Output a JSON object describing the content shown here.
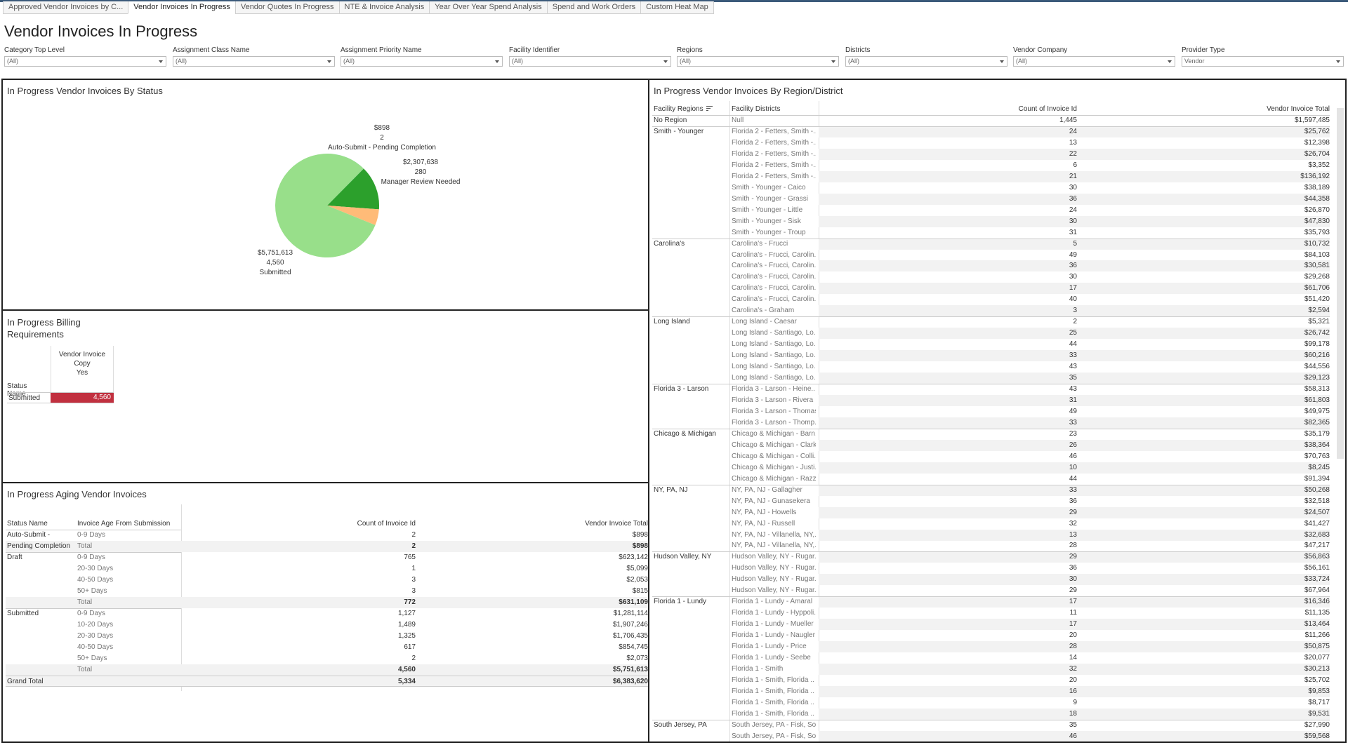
{
  "tabs": [
    {
      "label": "Approved Vendor Invoices by C...",
      "active": false
    },
    {
      "label": "Vendor Invoices In Progress",
      "active": true
    },
    {
      "label": "Vendor Quotes In Progress",
      "active": false
    },
    {
      "label": "NTE & Invoice Analysis",
      "active": false
    },
    {
      "label": "Year Over Year Spend Analysis",
      "active": false
    },
    {
      "label": "Spend and Work Orders",
      "active": false
    },
    {
      "label": "Custom Heat Map",
      "active": false
    }
  ],
  "page_title": "Vendor Invoices In Progress",
  "filters": [
    {
      "label": "Category Top Level",
      "value": "(All)"
    },
    {
      "label": "Assignment Class Name",
      "value": "(All)"
    },
    {
      "label": "Assignment Priority Name",
      "value": "(All)"
    },
    {
      "label": "Facility Identifier",
      "value": "(All)"
    },
    {
      "label": "Regions",
      "value": "(All)"
    },
    {
      "label": "Districts",
      "value": "(All)"
    },
    {
      "label": "Vendor Company",
      "value": "(All)"
    },
    {
      "label": "Provider Type",
      "value": "Vendor"
    }
  ],
  "status_panel": {
    "title": "In Progress Vendor Invoices By Status",
    "colors": {
      "Submitted": "#98df8a",
      "Manager Review Needed": "#ffbb78",
      "Draft": "#2ca02c",
      "Auto-Submit - Pending Completion": "#9edae5"
    }
  },
  "chart_data": {
    "type": "pie",
    "slices": [
      {
        "name": "Submitted",
        "amount": "$5,751,613",
        "count": 4560,
        "count_label": "4,560",
        "value": 4560,
        "color": "#98df8a"
      },
      {
        "name": "Manager Review Needed",
        "amount": "$2,307,638",
        "count": 280,
        "count_label": "280",
        "value": 280,
        "color": "#ffbb78"
      },
      {
        "name": "",
        "amount": "",
        "count": 772,
        "count_label": "",
        "value": 772,
        "color": "#2ca02c"
      },
      {
        "name": "Auto-Submit - Pending Completion",
        "amount": "$898",
        "count": 2,
        "count_label": "2",
        "value": 2,
        "color": "#9edae5"
      }
    ]
  },
  "billing_panel": {
    "title_line1": "In Progress Billing",
    "title_line2": "Requirements",
    "col_header_line1": "Vendor Invoice",
    "col_header_line2": "Copy",
    "col_header_line3": "Yes",
    "row_header": "Status Name",
    "row_label": "Submitted",
    "row_value": "4,560",
    "highlight_color": "#c1303f"
  },
  "aging_panel": {
    "title": "In Progress Aging Vendor Invoices",
    "headers": {
      "status": "Status Name",
      "age": "Invoice Age From Submission",
      "count": "Count of Invoice Id",
      "total": "Vendor Invoice Total"
    },
    "rows": [
      {
        "status": "Auto-Submit -",
        "age": "0-9 Days",
        "count": "2",
        "total": "$898",
        "kind": "data"
      },
      {
        "status": "Pending Completion",
        "age": "Total",
        "count": "2",
        "total": "$898",
        "kind": "total"
      },
      {
        "status": "Draft",
        "age": "0-9 Days",
        "count": "765",
        "total": "$623,142",
        "kind": "data"
      },
      {
        "status": "",
        "age": "20-30 Days",
        "count": "1",
        "total": "$5,099",
        "kind": "data"
      },
      {
        "status": "",
        "age": "40-50 Days",
        "count": "3",
        "total": "$2,053",
        "kind": "data"
      },
      {
        "status": "",
        "age": "50+ Days",
        "count": "3",
        "total": "$815",
        "kind": "data"
      },
      {
        "status": "",
        "age": "Total",
        "count": "772",
        "total": "$631,109",
        "kind": "total"
      },
      {
        "status": "Submitted",
        "age": "0-9 Days",
        "count": "1,127",
        "total": "$1,281,114",
        "kind": "data"
      },
      {
        "status": "",
        "age": "10-20 Days",
        "count": "1,489",
        "total": "$1,907,246",
        "kind": "data"
      },
      {
        "status": "",
        "age": "20-30 Days",
        "count": "1,325",
        "total": "$1,706,435",
        "kind": "data"
      },
      {
        "status": "",
        "age": "40-50 Days",
        "count": "617",
        "total": "$854,745",
        "kind": "data"
      },
      {
        "status": "",
        "age": "50+ Days",
        "count": "2",
        "total": "$2,073",
        "kind": "data"
      },
      {
        "status": "",
        "age": "Total",
        "count": "4,560",
        "total": "$5,751,613",
        "kind": "total"
      },
      {
        "status": "Grand Total",
        "age": "",
        "count": "5,334",
        "total": "$6,383,620",
        "kind": "grand"
      }
    ]
  },
  "region_panel": {
    "title": "In Progress Vendor Invoices By Region/District",
    "headers": {
      "region": "Facility Regions",
      "district": "Facility Districts",
      "count": "Count of Invoice Id",
      "total": "Vendor Invoice Total"
    },
    "rows": [
      {
        "region": "No Region",
        "district": "Null",
        "count": "1,445",
        "total": "$1,597,485"
      },
      {
        "region": "Smith - Younger",
        "district": "Florida 2 - Fetters, Smith -..",
        "count": "24",
        "total": "$25,762"
      },
      {
        "region": "",
        "district": "Florida 2 - Fetters, Smith -..",
        "count": "13",
        "total": "$12,398"
      },
      {
        "region": "",
        "district": "Florida 2 - Fetters, Smith -..",
        "count": "22",
        "total": "$26,704"
      },
      {
        "region": "",
        "district": "Florida 2 - Fetters, Smith -..",
        "count": "6",
        "total": "$3,352"
      },
      {
        "region": "",
        "district": "Florida 2 - Fetters, Smith -..",
        "count": "21",
        "total": "$136,192"
      },
      {
        "region": "",
        "district": "Smith - Younger - Caico",
        "count": "30",
        "total": "$38,189"
      },
      {
        "region": "",
        "district": "Smith - Younger - Grassi",
        "count": "36",
        "total": "$44,358"
      },
      {
        "region": "",
        "district": "Smith - Younger - Little",
        "count": "24",
        "total": "$26,870"
      },
      {
        "region": "",
        "district": "Smith - Younger - Sisk",
        "count": "30",
        "total": "$47,830"
      },
      {
        "region": "",
        "district": "Smith - Younger - Troup",
        "count": "31",
        "total": "$35,793"
      },
      {
        "region": "Carolina's",
        "district": "Carolina's - Frucci",
        "count": "5",
        "total": "$10,732"
      },
      {
        "region": "",
        "district": "Carolina's - Frucci, Carolin..",
        "count": "49",
        "total": "$84,103"
      },
      {
        "region": "",
        "district": "Carolina's - Frucci, Carolin..",
        "count": "36",
        "total": "$30,581"
      },
      {
        "region": "",
        "district": "Carolina's - Frucci, Carolin..",
        "count": "30",
        "total": "$29,268"
      },
      {
        "region": "",
        "district": "Carolina's - Frucci, Carolin..",
        "count": "17",
        "total": "$61,706"
      },
      {
        "region": "",
        "district": "Carolina's - Frucci, Carolin..",
        "count": "40",
        "total": "$51,420"
      },
      {
        "region": "",
        "district": "Carolina's - Graham",
        "count": "3",
        "total": "$2,594"
      },
      {
        "region": "Long Island",
        "district": "Long Island - Caesar",
        "count": "2",
        "total": "$5,321"
      },
      {
        "region": "",
        "district": "Long Island - Santiago, Lo..",
        "count": "25",
        "total": "$26,742"
      },
      {
        "region": "",
        "district": "Long Island - Santiago, Lo..",
        "count": "44",
        "total": "$99,178"
      },
      {
        "region": "",
        "district": "Long Island - Santiago, Lo..",
        "count": "33",
        "total": "$60,216"
      },
      {
        "region": "",
        "district": "Long Island - Santiago, Lo..",
        "count": "43",
        "total": "$44,556"
      },
      {
        "region": "",
        "district": "Long Island - Santiago, Lo..",
        "count": "35",
        "total": "$29,123"
      },
      {
        "region": "Florida 3 - Larson",
        "district": "Florida 3 - Larson - Heine..",
        "count": "43",
        "total": "$58,313"
      },
      {
        "region": "",
        "district": "Florida 3 - Larson - Rivera",
        "count": "31",
        "total": "$61,803"
      },
      {
        "region": "",
        "district": "Florida 3 - Larson - Thomas",
        "count": "49",
        "total": "$49,975"
      },
      {
        "region": "",
        "district": "Florida 3 - Larson - Thomp..",
        "count": "33",
        "total": "$82,365"
      },
      {
        "region": "Chicago & Michigan",
        "district": "Chicago & Michigan - Barn..",
        "count": "23",
        "total": "$35,179"
      },
      {
        "region": "",
        "district": "Chicago & Michigan - Clark..",
        "count": "26",
        "total": "$38,364"
      },
      {
        "region": "",
        "district": "Chicago & Michigan - Colli..",
        "count": "46",
        "total": "$70,763"
      },
      {
        "region": "",
        "district": "Chicago & Michigan - Justi..",
        "count": "10",
        "total": "$8,245"
      },
      {
        "region": "",
        "district": "Chicago & Michigan - Razz..",
        "count": "44",
        "total": "$91,394"
      },
      {
        "region": "NY, PA, NJ",
        "district": "NY, PA, NJ - Gallagher",
        "count": "33",
        "total": "$50,268"
      },
      {
        "region": "",
        "district": "NY, PA, NJ - Gunasekera",
        "count": "36",
        "total": "$32,518"
      },
      {
        "region": "",
        "district": "NY, PA, NJ - Howells",
        "count": "29",
        "total": "$24,507"
      },
      {
        "region": "",
        "district": "NY, PA, NJ - Russell",
        "count": "32",
        "total": "$41,427"
      },
      {
        "region": "",
        "district": "NY, PA, NJ - Villanella, NY,..",
        "count": "13",
        "total": "$32,683"
      },
      {
        "region": "",
        "district": "NY, PA, NJ - Villanella, NY,..",
        "count": "28",
        "total": "$47,217"
      },
      {
        "region": "Hudson Valley, NY",
        "district": "Hudson Valley, NY - Rugar..",
        "count": "29",
        "total": "$56,863"
      },
      {
        "region": "",
        "district": "Hudson Valley, NY - Rugar..",
        "count": "36",
        "total": "$56,161"
      },
      {
        "region": "",
        "district": "Hudson Valley, NY - Rugar..",
        "count": "30",
        "total": "$33,724"
      },
      {
        "region": "",
        "district": "Hudson Valley, NY - Rugar..",
        "count": "29",
        "total": "$67,964"
      },
      {
        "region": "Florida 1 - Lundy",
        "district": "Florida 1 - Lundy - Amaral",
        "count": "17",
        "total": "$16,346"
      },
      {
        "region": "",
        "district": "Florida 1 - Lundy - Hyppoli..",
        "count": "11",
        "total": "$11,135"
      },
      {
        "region": "",
        "district": "Florida 1 - Lundy - Mueller",
        "count": "17",
        "total": "$13,464"
      },
      {
        "region": "",
        "district": "Florida 1 - Lundy - Naugler",
        "count": "20",
        "total": "$11,266"
      },
      {
        "region": "",
        "district": "Florida 1 - Lundy - Price",
        "count": "28",
        "total": "$50,875"
      },
      {
        "region": "",
        "district": "Florida 1 - Lundy - Seebe",
        "count": "14",
        "total": "$20,077"
      },
      {
        "region": "",
        "district": "Florida 1 - Smith",
        "count": "32",
        "total": "$30,213"
      },
      {
        "region": "",
        "district": "Florida 1 - Smith, Florida ..",
        "count": "20",
        "total": "$25,702"
      },
      {
        "region": "",
        "district": "Florida 1 - Smith, Florida ..",
        "count": "16",
        "total": "$9,853"
      },
      {
        "region": "",
        "district": "Florida 1 - Smith, Florida ..",
        "count": "9",
        "total": "$8,717"
      },
      {
        "region": "",
        "district": "Florida 1 - Smith, Florida ..",
        "count": "18",
        "total": "$9,531"
      },
      {
        "region": "South Jersey, PA",
        "district": "South Jersey, PA - Fisk, So..",
        "count": "35",
        "total": "$27,990"
      },
      {
        "region": "",
        "district": "South Jersey, PA - Fisk, So..",
        "count": "46",
        "total": "$59,568"
      }
    ]
  }
}
